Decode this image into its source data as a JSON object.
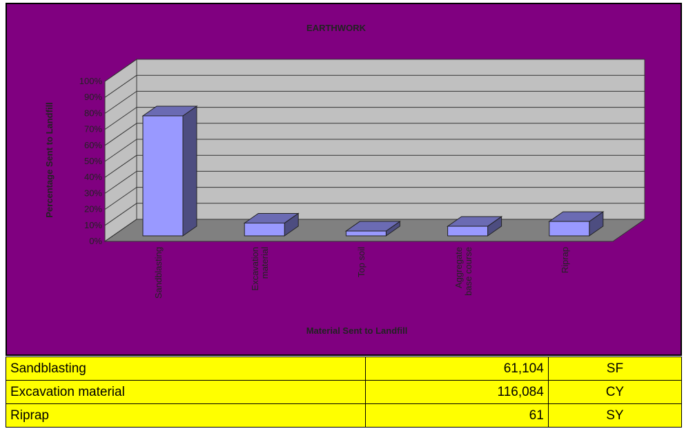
{
  "chart_data": {
    "type": "bar3d",
    "title": "EARTHWORK",
    "x_label": "Material Sent to Landfill",
    "y_label": "Percentage Sent to Landfill",
    "categories": [
      "Sandblasting",
      "Excavation material",
      "Top soil",
      "Aggregate base course",
      "Riprap"
    ],
    "values": [
      75,
      8,
      3,
      6,
      9
    ],
    "color": "#9999ff",
    "ylim": [
      0,
      100
    ],
    "yticks": [
      {
        "value": 0,
        "label": "0%"
      },
      {
        "value": 10,
        "label": "10%"
      },
      {
        "value": 20,
        "label": "20%"
      },
      {
        "value": 30,
        "label": "30%"
      },
      {
        "value": 40,
        "label": "40%"
      },
      {
        "value": 50,
        "label": "50%"
      },
      {
        "value": 60,
        "label": "60%"
      },
      {
        "value": 70,
        "label": "70%"
      },
      {
        "value": 80,
        "label": "80%"
      },
      {
        "value": 90,
        "label": "90%"
      },
      {
        "value": 100,
        "label": "100%"
      }
    ],
    "grid": true
  },
  "table": {
    "rows": [
      [
        "Sandblasting",
        "61,104",
        "SF"
      ],
      [
        "Excavation material",
        "116,084",
        "CY"
      ],
      [
        "Riprap",
        "61",
        "SY"
      ]
    ]
  }
}
